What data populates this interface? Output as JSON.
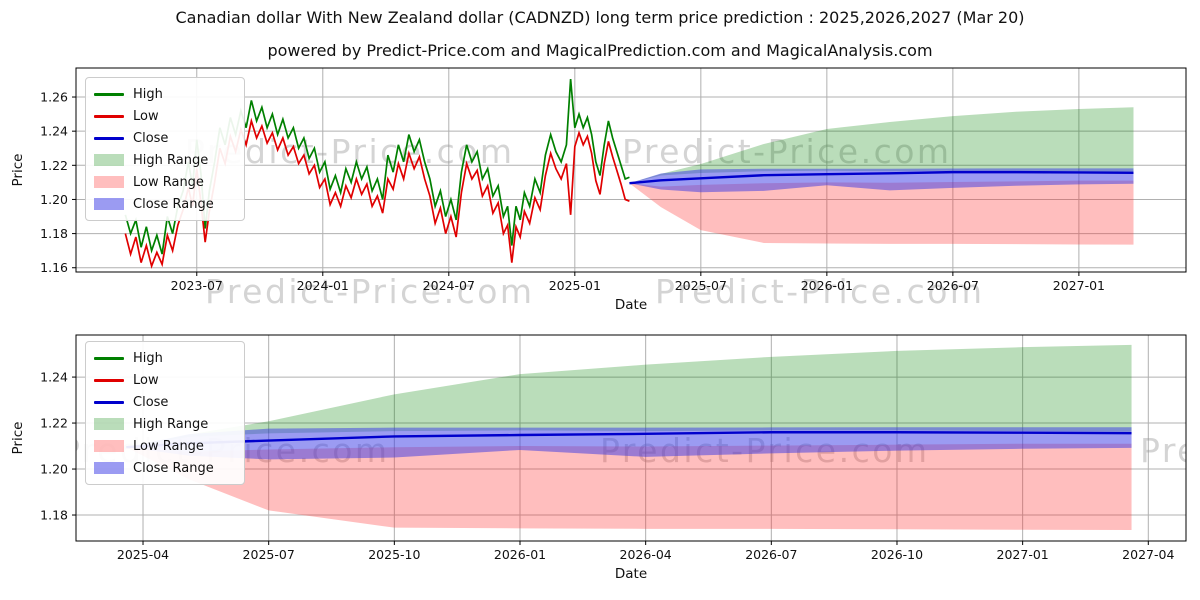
{
  "title": "Canadian dollar With New Zealand dollar (CADNZD) long term price prediction : 2025,2026,2027 (Mar 20)",
  "subtitle": "powered by Predict-Price.com and MagicalPrediction.com and MagicalAnalysis.com",
  "watermark_text": "Predict-Price.com",
  "colors": {
    "high_line": "#008000",
    "low_line": "#e00000",
    "close_line": "#0000cc",
    "high_range_fill": "rgba(0,128,0,0.27)",
    "low_range_fill": "rgba(255,40,40,0.30)",
    "close_range_fill": "rgba(55,55,230,0.50)",
    "grid": "#b0b0b0",
    "spine": "#000000",
    "watermark": "#999999"
  },
  "legend": {
    "items": [
      {
        "label": "High",
        "type": "line",
        "color_key": "high_line"
      },
      {
        "label": "Low",
        "type": "line",
        "color_key": "low_line"
      },
      {
        "label": "Close",
        "type": "line",
        "color_key": "close_line"
      },
      {
        "label": "High Range",
        "type": "patch",
        "color_key": "high_range_fill"
      },
      {
        "label": "Low Range",
        "type": "patch",
        "color_key": "low_range_fill"
      },
      {
        "label": "Close Range",
        "type": "patch",
        "color_key": "close_range_fill"
      }
    ]
  },
  "chart_data": [
    {
      "type": "line",
      "title": "CADNZD history (2023-03 to 2025-03) with prediction to 2027-03",
      "xlabel": "Date",
      "ylabel": "Price",
      "x_unit": "months since 2023-03-20",
      "xlim": [
        -2.35,
        50.5
      ],
      "ylim": [
        1.1575,
        1.277
      ],
      "grid": true,
      "legend_position": "upper left",
      "xticks": [
        {
          "x": 3.4,
          "label": "2023-07"
        },
        {
          "x": 9.4,
          "label": "2024-01"
        },
        {
          "x": 15.4,
          "label": "2024-07"
        },
        {
          "x": 21.4,
          "label": "2025-01"
        },
        {
          "x": 27.4,
          "label": "2025-07"
        },
        {
          "x": 33.4,
          "label": "2026-01"
        },
        {
          "x": 39.4,
          "label": "2026-07"
        },
        {
          "x": 45.4,
          "label": "2027-01"
        }
      ],
      "yticks": [
        {
          "v": 1.16,
          "label": "1.16"
        },
        {
          "v": 1.18,
          "label": "1.18"
        },
        {
          "v": 1.2,
          "label": "1.20"
        },
        {
          "v": 1.22,
          "label": "1.22"
        },
        {
          "v": 1.24,
          "label": "1.24"
        },
        {
          "v": 1.26,
          "label": "1.26"
        }
      ],
      "history_points_t_high_low": [
        [
          0.0,
          1.191,
          1.18
        ],
        [
          0.25,
          1.18,
          1.168
        ],
        [
          0.5,
          1.188,
          1.178
        ],
        [
          0.75,
          1.172,
          1.163
        ],
        [
          1.0,
          1.184,
          1.173
        ],
        [
          1.25,
          1.17,
          1.161
        ],
        [
          1.5,
          1.179,
          1.169
        ],
        [
          1.75,
          1.168,
          1.162
        ],
        [
          2.0,
          1.19,
          1.179
        ],
        [
          2.25,
          1.18,
          1.17
        ],
        [
          2.5,
          1.196,
          1.185
        ],
        [
          2.75,
          1.205,
          1.194
        ],
        [
          3.0,
          1.222,
          1.207
        ],
        [
          3.2,
          1.208,
          1.196
        ],
        [
          3.4,
          1.235,
          1.218
        ],
        [
          3.6,
          1.215,
          1.198
        ],
        [
          3.8,
          1.183,
          1.175
        ],
        [
          4.0,
          1.205,
          1.193
        ],
        [
          4.25,
          1.222,
          1.21
        ],
        [
          4.5,
          1.242,
          1.23
        ],
        [
          4.75,
          1.232,
          1.221
        ],
        [
          5.0,
          1.248,
          1.237
        ],
        [
          5.25,
          1.238,
          1.228
        ],
        [
          5.5,
          1.252,
          1.241
        ],
        [
          5.75,
          1.242,
          1.232
        ],
        [
          6.0,
          1.258,
          1.246
        ],
        [
          6.25,
          1.246,
          1.236
        ],
        [
          6.5,
          1.254,
          1.243
        ],
        [
          6.75,
          1.242,
          1.233
        ],
        [
          7.0,
          1.25,
          1.239
        ],
        [
          7.25,
          1.238,
          1.229
        ],
        [
          7.5,
          1.247,
          1.236
        ],
        [
          7.75,
          1.236,
          1.226
        ],
        [
          8.0,
          1.242,
          1.231
        ],
        [
          8.25,
          1.23,
          1.221
        ],
        [
          8.5,
          1.236,
          1.226
        ],
        [
          8.75,
          1.224,
          1.215
        ],
        [
          9.0,
          1.23,
          1.22
        ],
        [
          9.25,
          1.216,
          1.207
        ],
        [
          9.5,
          1.222,
          1.212
        ],
        [
          9.75,
          1.206,
          1.197
        ],
        [
          10.0,
          1.214,
          1.204
        ],
        [
          10.25,
          1.204,
          1.196
        ],
        [
          10.5,
          1.218,
          1.208
        ],
        [
          10.75,
          1.21,
          1.201
        ],
        [
          11.0,
          1.222,
          1.212
        ],
        [
          11.25,
          1.212,
          1.203
        ],
        [
          11.5,
          1.219,
          1.209
        ],
        [
          11.75,
          1.205,
          1.196
        ],
        [
          12.0,
          1.212,
          1.202
        ],
        [
          12.25,
          1.2,
          1.192
        ],
        [
          12.5,
          1.226,
          1.212
        ],
        [
          12.75,
          1.216,
          1.206
        ],
        [
          13.0,
          1.232,
          1.221
        ],
        [
          13.25,
          1.222,
          1.212
        ],
        [
          13.5,
          1.238,
          1.227
        ],
        [
          13.75,
          1.228,
          1.218
        ],
        [
          14.0,
          1.235,
          1.225
        ],
        [
          14.25,
          1.222,
          1.212
        ],
        [
          14.5,
          1.212,
          1.202
        ],
        [
          14.75,
          1.196,
          1.186
        ],
        [
          15.0,
          1.205,
          1.195
        ],
        [
          15.25,
          1.19,
          1.18
        ],
        [
          15.5,
          1.2,
          1.19
        ],
        [
          15.75,
          1.188,
          1.178
        ],
        [
          16.0,
          1.216,
          1.204
        ],
        [
          16.25,
          1.232,
          1.221
        ],
        [
          16.5,
          1.222,
          1.212
        ],
        [
          16.75,
          1.228,
          1.217
        ],
        [
          17.0,
          1.212,
          1.202
        ],
        [
          17.25,
          1.218,
          1.208
        ],
        [
          17.5,
          1.202,
          1.192
        ],
        [
          17.75,
          1.208,
          1.198
        ],
        [
          18.0,
          1.19,
          1.18
        ],
        [
          18.2,
          1.196,
          1.185
        ],
        [
          18.4,
          1.173,
          1.163
        ],
        [
          18.6,
          1.196,
          1.184
        ],
        [
          18.8,
          1.188,
          1.178
        ],
        [
          19.0,
          1.204,
          1.193
        ],
        [
          19.25,
          1.196,
          1.186
        ],
        [
          19.5,
          1.212,
          1.201
        ],
        [
          19.75,
          1.204,
          1.194
        ],
        [
          20.0,
          1.226,
          1.214
        ],
        [
          20.25,
          1.238,
          1.227
        ],
        [
          20.5,
          1.228,
          1.218
        ],
        [
          20.75,
          1.222,
          1.212
        ],
        [
          21.0,
          1.232,
          1.221
        ],
        [
          21.2,
          1.2705,
          1.191
        ],
        [
          21.4,
          1.242,
          1.231
        ],
        [
          21.6,
          1.25,
          1.239
        ],
        [
          21.8,
          1.242,
          1.232
        ],
        [
          22.0,
          1.248,
          1.237
        ],
        [
          22.2,
          1.238,
          1.227
        ],
        [
          22.4,
          1.222,
          1.211
        ],
        [
          22.6,
          1.214,
          1.203
        ],
        [
          22.8,
          1.232,
          1.221
        ],
        [
          23.0,
          1.246,
          1.234
        ],
        [
          23.2,
          1.236,
          1.225
        ],
        [
          23.4,
          1.228,
          1.217
        ],
        [
          23.6,
          1.22,
          1.209
        ],
        [
          23.8,
          1.212,
          1.2
        ],
        [
          24.0,
          1.213,
          1.199
        ]
      ],
      "prediction": {
        "x": [
          24,
          25.5,
          27.4,
          30.4,
          33.4,
          36.4,
          39.4,
          42.4,
          45.4,
          48
        ],
        "close": [
          1.2095,
          1.2112,
          1.2124,
          1.2142,
          1.2148,
          1.2153,
          1.216,
          1.216,
          1.2158,
          1.2156
        ],
        "close_range": {
          "upper": [
            1.2095,
            1.2152,
            1.2176,
            1.218,
            1.218,
            1.218,
            1.2181,
            1.2182,
            1.2182,
            1.2182
          ],
          "lower": [
            1.2095,
            1.2058,
            1.2042,
            1.205,
            1.2083,
            1.2053,
            1.2068,
            1.208,
            1.2088,
            1.2092
          ]
        },
        "high_range": {
          "upper": [
            1.2095,
            1.215,
            1.2208,
            1.2325,
            1.2413,
            1.2454,
            1.2488,
            1.2514,
            1.253,
            1.254
          ],
          "lower": [
            1.2095,
            1.214,
            1.2155,
            1.2165,
            1.2168,
            1.2165,
            1.2168,
            1.2168,
            1.2165,
            1.2162
          ]
        },
        "low_range": {
          "upper": [
            1.2095,
            1.2075,
            1.2085,
            1.2095,
            1.21,
            1.2098,
            1.2102,
            1.2106,
            1.211,
            1.211
          ],
          "lower": [
            1.2095,
            1.1955,
            1.182,
            1.1745,
            1.1742,
            1.174,
            1.174,
            1.1738,
            1.1736,
            1.1735
          ]
        }
      }
    },
    {
      "type": "line",
      "title": "CADNZD prediction detail (2025-03 to 2027-03)",
      "xlabel": "Date",
      "ylabel": "Price",
      "x_unit": "months since 2025-03-20",
      "xlim": [
        -1.2,
        25.3
      ],
      "ylim": [
        1.1687,
        1.2583
      ],
      "grid": true,
      "legend_position": "upper left",
      "xticks": [
        {
          "x": 0.4,
          "label": "2025-04"
        },
        {
          "x": 3.4,
          "label": "2025-07"
        },
        {
          "x": 6.4,
          "label": "2025-10"
        },
        {
          "x": 9.4,
          "label": "2026-01"
        },
        {
          "x": 12.4,
          "label": "2026-04"
        },
        {
          "x": 15.4,
          "label": "2026-07"
        },
        {
          "x": 18.4,
          "label": "2026-10"
        },
        {
          "x": 21.4,
          "label": "2027-01"
        },
        {
          "x": 24.4,
          "label": "2027-04"
        }
      ],
      "yticks": [
        {
          "v": 1.18,
          "label": "1.18"
        },
        {
          "v": 1.2,
          "label": "1.20"
        },
        {
          "v": 1.22,
          "label": "1.22"
        },
        {
          "v": 1.24,
          "label": "1.24"
        }
      ],
      "prediction": {
        "x": [
          0,
          1.5,
          3.4,
          6.4,
          9.4,
          12.4,
          15.4,
          18.4,
          21.4,
          24
        ],
        "close": [
          1.2095,
          1.2112,
          1.2124,
          1.2142,
          1.2148,
          1.2153,
          1.216,
          1.216,
          1.2158,
          1.2156
        ],
        "close_range": {
          "upper": [
            1.2095,
            1.2152,
            1.2176,
            1.218,
            1.218,
            1.218,
            1.2181,
            1.2182,
            1.2182,
            1.2182
          ],
          "lower": [
            1.2095,
            1.2058,
            1.2042,
            1.205,
            1.2083,
            1.2053,
            1.2068,
            1.208,
            1.2088,
            1.2092
          ]
        },
        "high_range": {
          "upper": [
            1.2095,
            1.215,
            1.2208,
            1.2325,
            1.2413,
            1.2454,
            1.2488,
            1.2514,
            1.253,
            1.254
          ],
          "lower": [
            1.2095,
            1.214,
            1.2155,
            1.2165,
            1.2168,
            1.2165,
            1.2168,
            1.2168,
            1.2165,
            1.2162
          ]
        },
        "low_range": {
          "upper": [
            1.2095,
            1.2075,
            1.2085,
            1.2095,
            1.21,
            1.2098,
            1.2102,
            1.2106,
            1.211,
            1.211
          ],
          "lower": [
            1.2095,
            1.1955,
            1.182,
            1.1745,
            1.1742,
            1.174,
            1.174,
            1.1738,
            1.1736,
            1.1735
          ]
        }
      }
    }
  ]
}
